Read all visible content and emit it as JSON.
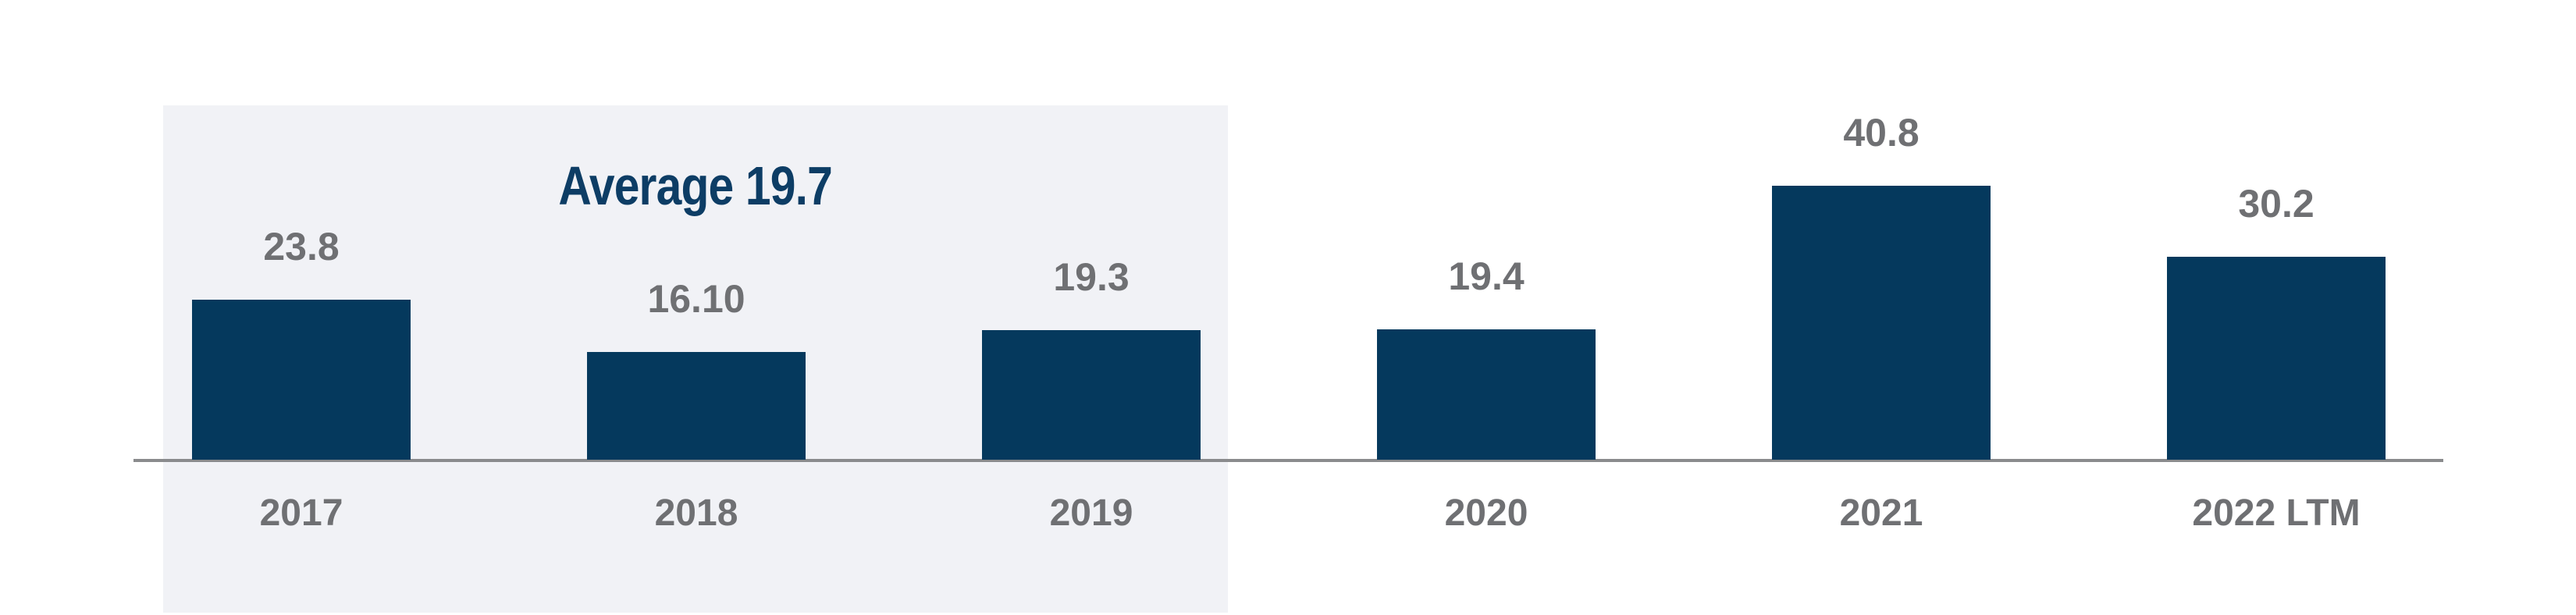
{
  "chart_data": {
    "type": "bar",
    "categories": [
      "2017",
      "2018",
      "2019",
      "2020",
      "2021",
      "2022 LTM"
    ],
    "values": [
      23.8,
      16.1,
      19.3,
      19.4,
      40.8,
      30.2
    ],
    "value_labels": [
      "23.8",
      "16.10",
      "19.3",
      "19.4",
      "40.8",
      "30.2"
    ],
    "title": "",
    "xlabel": "",
    "ylabel": "",
    "annotation": {
      "text": "Average 19.7",
      "value": 19.7,
      "applies_to": [
        "2017",
        "2018",
        "2019"
      ]
    },
    "highlight_region": {
      "categories": [
        "2017",
        "2018",
        "2019"
      ],
      "purpose": "average-period-band"
    },
    "layout_hints": {
      "y_axis": "hidden",
      "grid": "off",
      "legend": "none",
      "ylim_implied": [
        0,
        50
      ],
      "value_labels_position": "above-bars"
    },
    "colors": {
      "bar": "#05395d",
      "annotation_text": "#0d3d65",
      "value_label": "#6f7073",
      "tick_label": "#6f7073",
      "axis_line": "#8a8b8d",
      "highlight_bg": "#f1f2f6",
      "background": "#ffffff"
    }
  }
}
